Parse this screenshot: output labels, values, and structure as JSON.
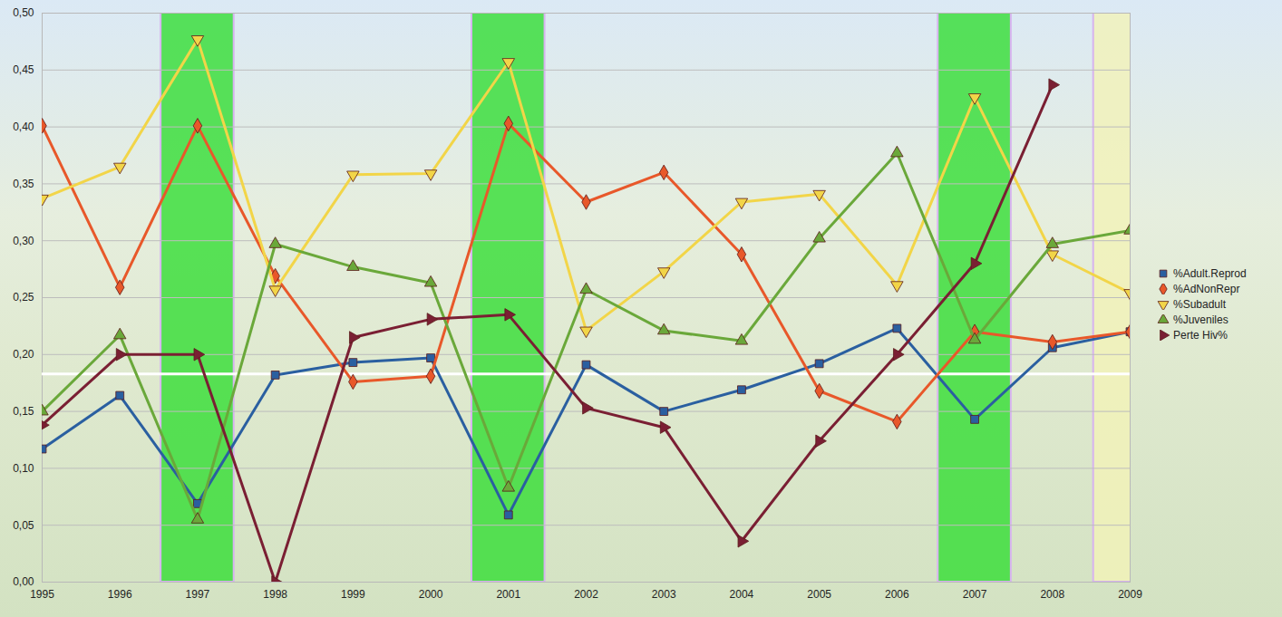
{
  "chart_data": {
    "type": "line",
    "x": [
      1995,
      1996,
      1997,
      1998,
      1999,
      2000,
      2001,
      2002,
      2003,
      2004,
      2005,
      2006,
      2007,
      2008,
      2009
    ],
    "xlim": [
      1995,
      2009
    ],
    "xticks": [
      1995,
      1996,
      1997,
      1998,
      1999,
      2000,
      2001,
      2002,
      2003,
      2004,
      2005,
      2006,
      2007,
      2008,
      2009
    ],
    "ylim": [
      0,
      0.5
    ],
    "yticks": [
      {
        "value": 0,
        "label": "0,00"
      },
      {
        "value": 0.05,
        "label": "0,05"
      },
      {
        "value": 0.1,
        "label": "0,10"
      },
      {
        "value": 0.15,
        "label": "0,15"
      },
      {
        "value": 0.2,
        "label": "0,20"
      },
      {
        "value": 0.25,
        "label": "0,25"
      },
      {
        "value": 0.3,
        "label": "0,30"
      },
      {
        "value": 0.35,
        "label": "0,35"
      },
      {
        "value": 0.4,
        "label": "0,40"
      },
      {
        "value": 0.45,
        "label": "0,45"
      },
      {
        "value": 0.5,
        "label": "0,50"
      }
    ],
    "grid": true,
    "legend": "right",
    "series": [
      {
        "name": "%Adult.Reprod",
        "color": "#2a5fa0",
        "marker": "square",
        "values": [
          0.117,
          0.164,
          0.069,
          0.182,
          0.193,
          0.197,
          0.059,
          0.191,
          0.15,
          0.169,
          0.192,
          0.223,
          0.143,
          0.206,
          0.22
        ]
      },
      {
        "name": "%AdNonRepr",
        "color": "#e8582a",
        "marker": "diamond",
        "values": [
          0.401,
          0.259,
          0.401,
          0.269,
          0.176,
          0.181,
          0.403,
          0.334,
          0.36,
          0.288,
          0.168,
          0.141,
          0.22,
          0.211,
          0.22
        ]
      },
      {
        "name": "%Subadult",
        "color": "#f2d548",
        "marker": "triangle-down",
        "values": [
          0.337,
          0.365,
          0.477,
          0.257,
          0.358,
          0.359,
          0.457,
          0.221,
          0.273,
          0.334,
          0.341,
          0.261,
          0.426,
          0.288,
          0.254
        ]
      },
      {
        "name": "%Juveniles",
        "color": "#6aa83a",
        "marker": "triangle",
        "values": [
          0.15,
          0.217,
          0.055,
          0.297,
          0.277,
          0.263,
          0.083,
          0.257,
          0.221,
          0.212,
          0.302,
          0.377,
          0.213,
          0.297,
          0.309
        ]
      },
      {
        "name": "Perte Hiv%",
        "color": "#7a1f33",
        "marker": "triangle-right",
        "values": [
          0.138,
          0.2,
          0.2,
          0.0,
          0.215,
          0.231,
          0.235,
          0.153,
          0.136,
          0.036,
          0.124,
          0.2,
          0.28,
          0.437,
          null
        ]
      }
    ],
    "highlights": [
      {
        "x": 1997,
        "color": "#33dd33"
      },
      {
        "x": 2001,
        "color": "#33dd33"
      },
      {
        "x": 2007,
        "color": "#33dd33"
      },
      {
        "x": 2009,
        "color": "#f3f3b8"
      }
    ],
    "reference_y": 0.183
  }
}
